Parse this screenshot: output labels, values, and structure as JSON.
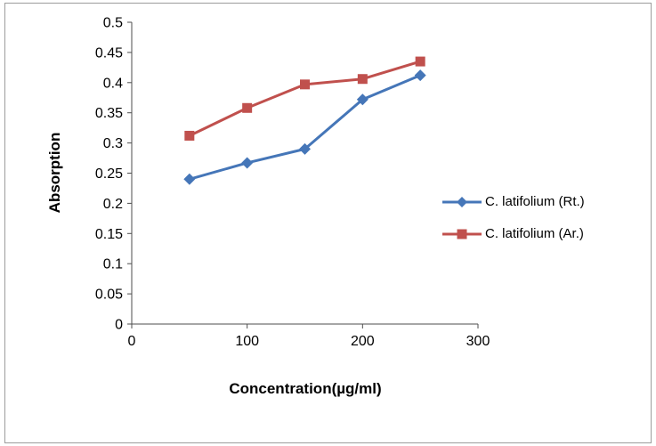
{
  "figure": {
    "background": "#ffffff",
    "border_color": "#9c9c9c",
    "axis_color": "#4d4d4d"
  },
  "chart_data": {
    "type": "line",
    "title": "",
    "xlabel": "Concentration(µg/ml)",
    "ylabel": "Absorption",
    "xlim": [
      0,
      300
    ],
    "ylim": [
      0,
      0.5
    ],
    "xticks": [
      0,
      100,
      200,
      300
    ],
    "yticks": [
      0,
      0.05,
      0.1,
      0.15,
      0.2,
      0.25,
      0.3,
      0.35,
      0.4,
      0.45,
      0.5
    ],
    "grid": false,
    "legend_position": "right",
    "x": [
      50,
      100,
      150,
      200,
      250
    ],
    "series": [
      {
        "name": "C. latifolium (Rt.)",
        "marker": "diamond",
        "color": "#4576b8",
        "values": [
          0.24,
          0.267,
          0.29,
          0.372,
          0.412
        ]
      },
      {
        "name": "C. latifolium (Ar.)",
        "marker": "square",
        "color": "#c0504d",
        "values": [
          0.312,
          0.358,
          0.397,
          0.406,
          0.435
        ]
      }
    ]
  }
}
